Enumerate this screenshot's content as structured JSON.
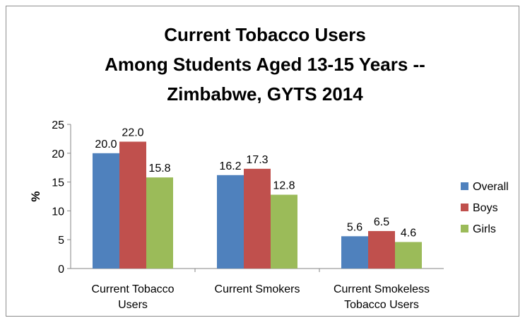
{
  "chart_data": {
    "type": "bar",
    "title_lines": [
      "Current Tobacco Users",
      "Among Students Aged 13-15 Years --",
      "Zimbabwe, GYTS 2014"
    ],
    "ylabel": "%",
    "xlabel": "",
    "ylim": [
      0,
      25
    ],
    "yticks": [
      0,
      5,
      10,
      15,
      20,
      25
    ],
    "categories": [
      [
        "Current Tobacco",
        "Users"
      ],
      [
        "Current Smokers"
      ],
      [
        "Current Smokeless",
        "Tobacco Users"
      ]
    ],
    "series": [
      {
        "name": "Overall",
        "color": "#4f81bd",
        "values": [
          20.0,
          16.2,
          5.6
        ],
        "labels": [
          "20.0",
          "16.2",
          "5.6"
        ]
      },
      {
        "name": "Boys",
        "color": "#c0504d",
        "values": [
          22.0,
          17.3,
          6.5
        ],
        "labels": [
          "22.0",
          "17.3",
          "6.5"
        ]
      },
      {
        "name": "Girls",
        "color": "#9bbb59",
        "values": [
          15.8,
          12.8,
          4.6
        ],
        "labels": [
          "15.8",
          "12.8",
          "4.6"
        ]
      }
    ],
    "grid": false,
    "legend_position": "right"
  }
}
